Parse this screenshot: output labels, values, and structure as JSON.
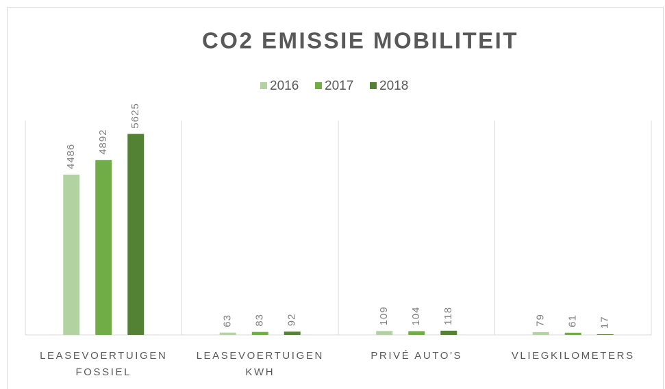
{
  "chart_data": {
    "type": "bar",
    "title": "CO2 EMISSIE MOBILITEIT",
    "categories": [
      "LEASEVOERTUIGEN FOSSIEL",
      "LEASEVOERTUIGEN KWH",
      "PRIVÉ AUTO'S",
      "VLIEGKILOMETERS"
    ],
    "series": [
      {
        "name": "2016",
        "color": "#b2d2a1",
        "values": [
          4486,
          63,
          109,
          79
        ]
      },
      {
        "name": "2017",
        "color": "#70ad47",
        "values": [
          4892,
          83,
          104,
          61
        ]
      },
      {
        "name": "2018",
        "color": "#548235",
        "values": [
          5625,
          92,
          118,
          17
        ]
      }
    ],
    "ylim": [
      0,
      6000
    ],
    "legend": "top"
  }
}
